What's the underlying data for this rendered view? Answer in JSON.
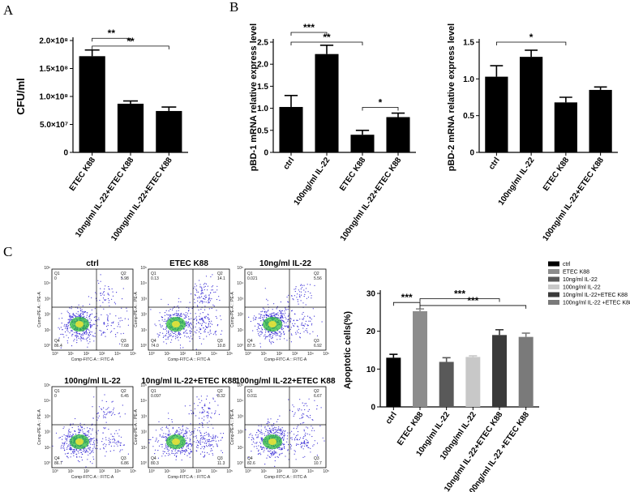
{
  "panel_labels": {
    "a": "A",
    "b": "B",
    "c": "C"
  },
  "colors": {
    "black": "#000000",
    "dot": "#3b2fd6",
    "core": "#2fbf3a",
    "hot": "#e8e23a"
  },
  "chart_data": [
    {
      "id": "A",
      "type": "bar",
      "title": "",
      "xlabel": "",
      "ylabel": "CFU/ml",
      "ylim": [
        0,
        200000000
      ],
      "yticks": [
        {
          "value": 0,
          "label": "0"
        },
        {
          "value": 50000000,
          "label": "5.0×10⁷"
        },
        {
          "value": 100000000,
          "label": "1.0×10⁸"
        },
        {
          "value": 150000000,
          "label": "1.5×10⁸"
        },
        {
          "value": 200000000,
          "label": "2.0×10⁸"
        }
      ],
      "categories": [
        "ETEC K88",
        "10ng/ml IL-22+ETEC K88",
        "100ng/ml IL-22+ETEC K88"
      ],
      "values": [
        172000000,
        87000000,
        74000000
      ],
      "errors": [
        11000000,
        5000000,
        7000000
      ],
      "bar_colors": [
        "#000000",
        "#000000",
        "#000000"
      ],
      "significance": [
        {
          "from": 0,
          "to": 1,
          "label": "**",
          "y": 204000000
        },
        {
          "from": 0,
          "to": 2,
          "label": "**",
          "y": 190000000
        }
      ]
    },
    {
      "id": "B1",
      "type": "bar",
      "title": "",
      "xlabel": "",
      "ylabel": "pBD-1 mRNA relative express level",
      "ylim": [
        0,
        2.5
      ],
      "yticks": [
        {
          "value": 0,
          "label": "0"
        },
        {
          "value": 0.5,
          "label": "0.5"
        },
        {
          "value": 1.0,
          "label": "1.0"
        },
        {
          "value": 1.5,
          "label": "1.5"
        },
        {
          "value": 2.0,
          "label": "2.0"
        },
        {
          "value": 2.5,
          "label": "2.5"
        }
      ],
      "categories": [
        "ctrl",
        "100ng/ml IL-22",
        "ETEC K88",
        "100ng/ml IL-22+ETEC K88"
      ],
      "values": [
        1.03,
        2.23,
        0.4,
        0.8
      ],
      "errors": [
        0.26,
        0.2,
        0.1,
        0.09
      ],
      "bar_colors": [
        "#000000",
        "#000000",
        "#000000",
        "#000000"
      ],
      "significance": [
        {
          "from": 0,
          "to": 1,
          "label": "***",
          "y": 2.72
        },
        {
          "from": 0,
          "to": 2,
          "label": "**",
          "y": 2.5
        },
        {
          "from": 2,
          "to": 3,
          "label": "*",
          "y": 1.02
        }
      ]
    },
    {
      "id": "B2",
      "type": "bar",
      "title": "",
      "xlabel": "",
      "ylabel": "pBD-2 mRNA relative express level",
      "ylim": [
        0,
        1.5
      ],
      "yticks": [
        {
          "value": 0,
          "label": "0"
        },
        {
          "value": 0.5,
          "label": "0.5"
        },
        {
          "value": 1.0,
          "label": "1.0"
        },
        {
          "value": 1.5,
          "label": "1.5"
        }
      ],
      "categories": [
        "ctrl",
        "100ng/ml IL-22",
        "ETEC K88",
        "100ng/ml IL-22+ETEC K88"
      ],
      "values": [
        1.03,
        1.3,
        0.68,
        0.85
      ],
      "errors": [
        0.15,
        0.09,
        0.07,
        0.04
      ],
      "bar_colors": [
        "#000000",
        "#000000",
        "#000000",
        "#000000"
      ],
      "significance": [
        {
          "from": 0,
          "to": 2,
          "label": "*",
          "y": 1.5
        }
      ]
    },
    {
      "id": "C_bar",
      "type": "bar",
      "title": "",
      "xlabel": "",
      "ylabel": "Apoptotic cells(%)",
      "ylim": [
        0,
        30
      ],
      "yticks": [
        {
          "value": 0,
          "label": "0"
        },
        {
          "value": 10,
          "label": "10"
        },
        {
          "value": 20,
          "label": "20"
        },
        {
          "value": 30,
          "label": "30"
        }
      ],
      "categories": [
        "ctrl",
        "ETEC K88",
        "10ng/ml  IL-22",
        "100ng/ml IL-22",
        "10ng/ml  IL-22+ETEC K88",
        "100ng/ml IL-22 +ETEC K88"
      ],
      "values": [
        13.0,
        25.3,
        11.9,
        13.2,
        19.0,
        18.5
      ],
      "errors": [
        0.9,
        0.6,
        1.1,
        0.3,
        1.4,
        1.0
      ],
      "bar_colors": [
        "#000000",
        "#8c8c8c",
        "#595959",
        "#c8c8c8",
        "#3a3a3a",
        "#7a7a7a"
      ],
      "legend": [
        "ctrl",
        "ETEC K88",
        "10ng/ml  IL-22",
        "100ng/ml IL-22",
        "10ng/ml  IL-22+ETEC K88",
        "100ng/ml IL-22 +ETEC K88"
      ],
      "legend_position": "top-right",
      "significance": [
        {
          "from": 0,
          "to": 1,
          "label": "***",
          "y": 27.6
        },
        {
          "from": 1,
          "to": 4,
          "label": "***",
          "y": 28.6
        },
        {
          "from": 1,
          "to": 5,
          "label": "***",
          "y": 26.8
        }
      ]
    }
  ],
  "flow_plots": [
    {
      "title": "ctrl",
      "xlabel": "Comp-FITC-A :: FITC-A",
      "ylabel": "Comp-PE-A :: PE-A",
      "q1": "0",
      "q2": "5.98",
      "q3": "7.68",
      "q4": "86.4"
    },
    {
      "title": "ETEC K88",
      "xlabel": "Comp-FITC-A :: FITC-A",
      "ylabel": "Comp-PE-A :: PE-A",
      "q1": "0.13",
      "q2": "14.1",
      "q3": "10.8",
      "q4": "74.0"
    },
    {
      "title": "10ng/ml IL-22",
      "xlabel": "Comp-FITC-A :: FITC-A",
      "ylabel": "Comp-PE-A :: PE-A",
      "q1": "0.021",
      "q2": "5.56",
      "q3": "6.92",
      "q4": "87.5"
    },
    {
      "title": "100ng/ml IL-22",
      "xlabel": "Comp-FITC-A :: FITC-A",
      "ylabel": "Comp-PE-A :: PE-A",
      "q1": "0",
      "q2": "6.45",
      "q3": "6.86",
      "q4": "86.7"
    },
    {
      "title": "10ng/ml IL-22+ETEC K88",
      "xlabel": "Comp-FITC-A :: FITC-A",
      "ylabel": "Comp-PE-A :: PE-A",
      "q1": "0.097",
      "q2": "8.32",
      "q3": "11.3",
      "q4": "80.3"
    },
    {
      "title": "100ng/ml IL-22+ETEC K88",
      "xlabel": "Comp-FITC-A :: FITC-A",
      "ylabel": "Comp-PE-A :: PE-A",
      "q1": "0.011",
      "q2": "6.67",
      "q3": "10.7",
      "q4": "82.6"
    }
  ],
  "flow_quadrant_labels": [
    "Q1",
    "Q2",
    "Q3",
    "Q4"
  ],
  "flow_axis_ticks": [
    "10⁰",
    "10¹",
    "10²",
    "10³",
    "10⁴",
    "10⁵"
  ]
}
